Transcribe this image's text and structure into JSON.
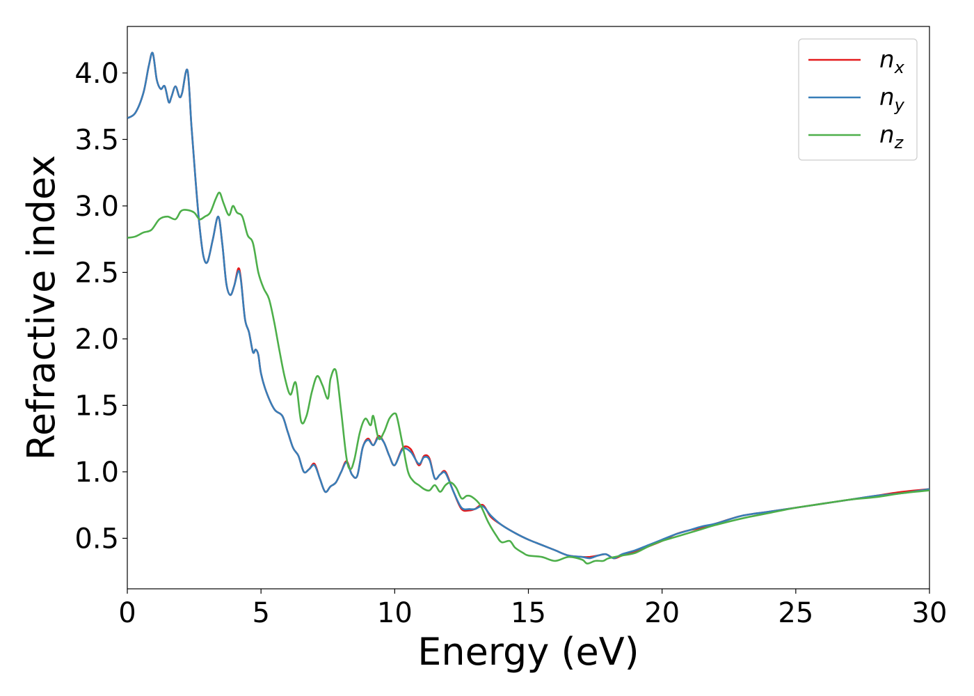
{
  "chart_data": {
    "type": "line",
    "xlabel": "Energy (eV)",
    "ylabel": "Refractive index",
    "xlim": [
      0,
      30
    ],
    "ylim": [
      0.12,
      4.35
    ],
    "xticks": [
      0,
      5,
      10,
      15,
      20,
      25,
      30
    ],
    "xtick_labels": [
      "0",
      "5",
      "10",
      "15",
      "20",
      "25",
      "30"
    ],
    "yticks": [
      0.5,
      1.0,
      1.5,
      2.0,
      2.5,
      3.0,
      3.5,
      4.0
    ],
    "ytick_labels": [
      "0.5",
      "1.0",
      "1.5",
      "2.0",
      "2.5",
      "3.0",
      "3.5",
      "4.0"
    ],
    "grid": false,
    "legend_position": "top-right",
    "series": [
      {
        "name": "n",
        "subscript": "x",
        "color": "#e41a1c",
        "x": [
          0,
          0.3,
          0.6,
          0.8,
          0.95,
          1.1,
          1.25,
          1.4,
          1.55,
          1.65,
          1.8,
          1.95,
          2.05,
          2.25,
          2.4,
          2.55,
          2.7,
          2.85,
          3.0,
          3.2,
          3.4,
          3.55,
          3.7,
          3.85,
          4.0,
          4.15,
          4.25,
          4.4,
          4.55,
          4.7,
          4.8,
          4.9,
          5.0,
          5.2,
          5.5,
          5.8,
          6.0,
          6.2,
          6.4,
          6.6,
          6.8,
          7.0,
          7.2,
          7.4,
          7.6,
          7.8,
          8.0,
          8.2,
          8.4,
          8.6,
          8.8,
          9.0,
          9.2,
          9.4,
          9.6,
          9.8,
          10.0,
          10.3,
          10.6,
          10.9,
          11.1,
          11.3,
          11.5,
          11.7,
          11.9,
          12.2,
          12.5,
          12.8,
          13.0,
          13.3,
          13.6,
          14.0,
          14.5,
          15.0,
          15.5,
          16.0,
          16.5,
          17.0,
          17.3,
          17.6,
          17.9,
          18.2,
          18.5,
          19.0,
          19.5,
          20.0,
          20.5,
          21.0,
          21.5,
          22.0,
          23.0,
          24.0,
          25.0,
          26.0,
          27.0,
          28.0,
          29.0,
          30.0
        ],
        "y": [
          3.66,
          3.7,
          3.85,
          4.05,
          4.15,
          3.95,
          3.88,
          3.9,
          3.78,
          3.82,
          3.9,
          3.82,
          3.85,
          4.02,
          3.6,
          3.2,
          2.85,
          2.62,
          2.58,
          2.75,
          2.92,
          2.72,
          2.42,
          2.33,
          2.4,
          2.53,
          2.45,
          2.15,
          2.05,
          1.9,
          1.92,
          1.88,
          1.74,
          1.6,
          1.47,
          1.42,
          1.3,
          1.18,
          1.12,
          1.0,
          1.02,
          1.06,
          0.95,
          0.85,
          0.89,
          0.92,
          1.0,
          1.08,
          0.98,
          0.97,
          1.18,
          1.25,
          1.2,
          1.27,
          1.22,
          1.12,
          1.05,
          1.18,
          1.17,
          1.05,
          1.12,
          1.1,
          0.95,
          0.98,
          1.0,
          0.85,
          0.72,
          0.71,
          0.72,
          0.75,
          0.66,
          0.6,
          0.54,
          0.49,
          0.45,
          0.41,
          0.37,
          0.36,
          0.36,
          0.37,
          0.38,
          0.35,
          0.37,
          0.4,
          0.44,
          0.48,
          0.53,
          0.56,
          0.58,
          0.61,
          0.67,
          0.7,
          0.73,
          0.76,
          0.79,
          0.82,
          0.85,
          0.87
        ]
      },
      {
        "name": "n",
        "subscript": "y",
        "color": "#377eb8",
        "x": [
          0,
          0.3,
          0.6,
          0.8,
          0.95,
          1.1,
          1.25,
          1.4,
          1.55,
          1.65,
          1.8,
          1.95,
          2.05,
          2.25,
          2.4,
          2.55,
          2.7,
          2.85,
          3.0,
          3.2,
          3.4,
          3.55,
          3.7,
          3.85,
          4.0,
          4.15,
          4.25,
          4.4,
          4.55,
          4.7,
          4.8,
          4.9,
          5.0,
          5.2,
          5.5,
          5.8,
          6.0,
          6.2,
          6.4,
          6.6,
          6.8,
          7.0,
          7.2,
          7.4,
          7.6,
          7.8,
          8.0,
          8.2,
          8.4,
          8.6,
          8.8,
          9.0,
          9.2,
          9.4,
          9.6,
          9.8,
          10.0,
          10.3,
          10.6,
          10.9,
          11.1,
          11.3,
          11.5,
          11.7,
          11.9,
          12.2,
          12.5,
          12.8,
          13.0,
          13.3,
          13.6,
          14.0,
          14.5,
          15.0,
          15.5,
          16.0,
          16.5,
          17.0,
          17.3,
          17.6,
          17.9,
          18.2,
          18.5,
          19.0,
          19.5,
          20.0,
          20.5,
          21.0,
          21.5,
          22.0,
          23.0,
          24.0,
          25.0,
          26.0,
          27.0,
          28.0,
          29.0,
          30.0
        ],
        "y": [
          3.66,
          3.7,
          3.85,
          4.05,
          4.15,
          3.95,
          3.88,
          3.9,
          3.78,
          3.82,
          3.9,
          3.82,
          3.85,
          4.02,
          3.6,
          3.2,
          2.85,
          2.62,
          2.58,
          2.75,
          2.92,
          2.72,
          2.42,
          2.33,
          2.4,
          2.51,
          2.44,
          2.15,
          2.05,
          1.9,
          1.92,
          1.88,
          1.74,
          1.6,
          1.47,
          1.42,
          1.3,
          1.18,
          1.12,
          1.0,
          1.02,
          1.05,
          0.95,
          0.85,
          0.89,
          0.92,
          1.0,
          1.07,
          0.98,
          0.97,
          1.18,
          1.24,
          1.2,
          1.26,
          1.22,
          1.12,
          1.05,
          1.17,
          1.15,
          1.06,
          1.11,
          1.09,
          0.95,
          0.98,
          0.99,
          0.85,
          0.73,
          0.72,
          0.72,
          0.74,
          0.67,
          0.6,
          0.54,
          0.49,
          0.45,
          0.41,
          0.37,
          0.36,
          0.35,
          0.37,
          0.38,
          0.35,
          0.38,
          0.41,
          0.45,
          0.49,
          0.53,
          0.56,
          0.59,
          0.61,
          0.67,
          0.7,
          0.73,
          0.76,
          0.79,
          0.82,
          0.84,
          0.87
        ]
      },
      {
        "name": "n",
        "subscript": "z",
        "color": "#4daf4a",
        "x": [
          0,
          0.3,
          0.6,
          0.9,
          1.2,
          1.5,
          1.8,
          2.0,
          2.2,
          2.5,
          2.7,
          2.9,
          3.1,
          3.3,
          3.45,
          3.6,
          3.8,
          3.95,
          4.1,
          4.3,
          4.5,
          4.7,
          4.9,
          5.1,
          5.3,
          5.5,
          5.7,
          5.9,
          6.1,
          6.3,
          6.5,
          6.7,
          6.9,
          7.1,
          7.3,
          7.5,
          7.6,
          7.8,
          8.0,
          8.2,
          8.35,
          8.5,
          8.7,
          8.9,
          9.1,
          9.2,
          9.4,
          9.6,
          9.8,
          10.0,
          10.1,
          10.3,
          10.5,
          10.7,
          10.9,
          11.1,
          11.3,
          11.5,
          11.7,
          11.9,
          12.1,
          12.3,
          12.5,
          12.7,
          12.9,
          13.2,
          13.5,
          13.8,
          14.0,
          14.3,
          14.5,
          14.8,
          15.0,
          15.5,
          16.0,
          16.5,
          17.0,
          17.2,
          17.5,
          17.8,
          18.0,
          18.5,
          19.0,
          19.5,
          20.0,
          20.5,
          21.0,
          21.5,
          22.0,
          23.0,
          24.0,
          25.0,
          26.0,
          27.0,
          28.0,
          29.0,
          30.0
        ],
        "y": [
          2.76,
          2.77,
          2.8,
          2.82,
          2.9,
          2.92,
          2.9,
          2.96,
          2.97,
          2.95,
          2.9,
          2.92,
          2.95,
          3.05,
          3.1,
          3.02,
          2.93,
          3.0,
          2.95,
          2.92,
          2.78,
          2.72,
          2.5,
          2.38,
          2.3,
          2.12,
          1.9,
          1.7,
          1.58,
          1.67,
          1.38,
          1.42,
          1.6,
          1.72,
          1.65,
          1.55,
          1.7,
          1.76,
          1.45,
          1.1,
          1.02,
          1.1,
          1.3,
          1.4,
          1.35,
          1.42,
          1.25,
          1.3,
          1.4,
          1.44,
          1.4,
          1.2,
          1.0,
          0.93,
          0.9,
          0.87,
          0.86,
          0.9,
          0.85,
          0.9,
          0.92,
          0.88,
          0.8,
          0.82,
          0.81,
          0.75,
          0.62,
          0.52,
          0.47,
          0.48,
          0.43,
          0.39,
          0.37,
          0.36,
          0.33,
          0.36,
          0.34,
          0.31,
          0.33,
          0.33,
          0.35,
          0.37,
          0.39,
          0.44,
          0.48,
          0.51,
          0.54,
          0.57,
          0.6,
          0.65,
          0.69,
          0.73,
          0.76,
          0.79,
          0.81,
          0.84,
          0.86
        ]
      }
    ]
  }
}
